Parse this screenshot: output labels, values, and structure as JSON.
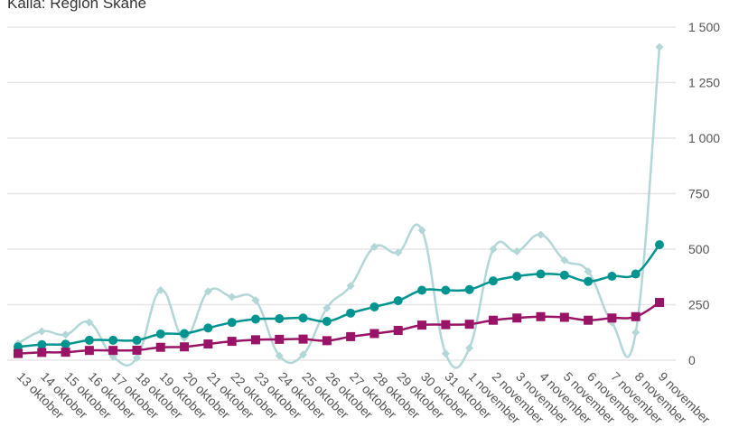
{
  "source_text": "Källa: Region Skåne",
  "colors": {
    "daily": "#b3d6d6",
    "avg7": "#009490",
    "avg14": "#991466",
    "grid": "#e6e6e6",
    "axis_text": "#555555"
  },
  "chart_data": {
    "type": "line",
    "title": "",
    "xlabel": "",
    "ylabel": "",
    "ylim": [
      0,
      1500
    ],
    "yticks": [
      0,
      250,
      500,
      750,
      1000,
      1250,
      1500
    ],
    "ytick_labels": [
      "0",
      "250",
      "500",
      "750",
      "1 000",
      "1 250",
      "1 500"
    ],
    "y_axis_side": "right",
    "grid": true,
    "legend": "none",
    "categories": [
      "13 oktober",
      "14 oktober",
      "15 oktober",
      "16 oktober",
      "17 oktober",
      "18 oktober",
      "19 oktober",
      "20 oktober",
      "21 oktober",
      "22 oktober",
      "23 oktober",
      "24 oktober",
      "25 oktober",
      "26 oktober",
      "27 oktober",
      "28 oktober",
      "29 oktober",
      "30 oktober",
      "31 oktober",
      "1 november",
      "2 november",
      "3 november",
      "4 november",
      "5 november",
      "6 november",
      "7 november",
      "8 november",
      "9 november"
    ],
    "series": [
      {
        "marker": "diamond",
        "color": "#b3d6d6",
        "values": [
          75,
          130,
          115,
          170,
          15,
          10,
          315,
          100,
          310,
          285,
          270,
          20,
          25,
          235,
          335,
          510,
          485,
          585,
          30,
          55,
          500,
          490,
          565,
          450,
          400,
          170,
          125,
          1410
        ]
      },
      {
        "marker": "circle",
        "color": "#009490",
        "values": [
          60,
          70,
          72,
          90,
          90,
          90,
          118,
          120,
          145,
          170,
          185,
          187,
          190,
          175,
          212,
          240,
          268,
          315,
          315,
          318,
          357,
          378,
          388,
          383,
          355,
          378,
          388,
          520
        ]
      },
      {
        "marker": "square",
        "color": "#991466",
        "values": [
          30,
          35,
          36,
          44,
          44,
          45,
          58,
          60,
          73,
          85,
          92,
          94,
          95,
          88,
          106,
          120,
          134,
          158,
          160,
          162,
          180,
          190,
          196,
          193,
          180,
          190,
          196,
          260
        ]
      }
    ]
  }
}
